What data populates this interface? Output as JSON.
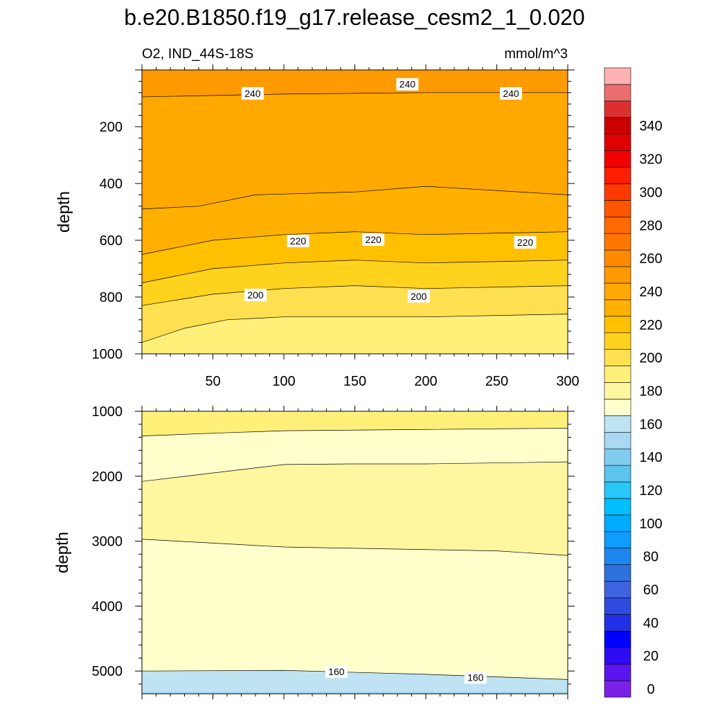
{
  "chart_data": {
    "type": "contour",
    "title": "b.e20.B1850.f19_g17.release_cesm2_1_0.020",
    "left_subtitle": "O2, IND_44S-18S",
    "right_subtitle": "mmol/m^3",
    "panels": [
      {
        "name": "upper",
        "ylabel": "depth",
        "xlim": [
          0,
          300
        ],
        "ylim": [
          0,
          1000
        ],
        "y_reversed": true,
        "x_ticks": [
          50,
          100,
          150,
          200,
          250,
          300
        ],
        "y_ticks": [
          200,
          400,
          600,
          800,
          1000
        ],
        "contour_lines": [
          {
            "level": 240,
            "depth_profile": [
              {
                "x": 0,
                "depth": 95
              },
              {
                "x": 100,
                "depth": 85
              },
              {
                "x": 200,
                "depth": 80
              },
              {
                "x": 300,
                "depth": 80
              }
            ]
          },
          {
            "level": 230,
            "depth_profile": [
              {
                "x": 0,
                "depth": 490
              },
              {
                "x": 40,
                "depth": 480
              },
              {
                "x": 80,
                "depth": 440
              },
              {
                "x": 150,
                "depth": 430
              },
              {
                "x": 200,
                "depth": 410
              },
              {
                "x": 300,
                "depth": 440
              }
            ]
          },
          {
            "level": 220,
            "depth_profile": [
              {
                "x": 0,
                "depth": 650
              },
              {
                "x": 50,
                "depth": 600
              },
              {
                "x": 100,
                "depth": 580
              },
              {
                "x": 150,
                "depth": 570
              },
              {
                "x": 200,
                "depth": 580
              },
              {
                "x": 300,
                "depth": 570
              }
            ]
          },
          {
            "level": 210,
            "depth_profile": [
              {
                "x": 0,
                "depth": 750
              },
              {
                "x": 50,
                "depth": 700
              },
              {
                "x": 100,
                "depth": 680
              },
              {
                "x": 150,
                "depth": 670
              },
              {
                "x": 200,
                "depth": 680
              },
              {
                "x": 300,
                "depth": 670
              }
            ]
          },
          {
            "level": 200,
            "depth_profile": [
              {
                "x": 0,
                "depth": 830
              },
              {
                "x": 50,
                "depth": 790
              },
              {
                "x": 100,
                "depth": 770
              },
              {
                "x": 150,
                "depth": 760
              },
              {
                "x": 200,
                "depth": 770
              },
              {
                "x": 300,
                "depth": 760
              }
            ]
          },
          {
            "level": 190,
            "depth_profile": [
              {
                "x": 0,
                "depth": 960
              },
              {
                "x": 30,
                "depth": 910
              },
              {
                "x": 60,
                "depth": 880
              },
              {
                "x": 100,
                "depth": 870
              },
              {
                "x": 150,
                "depth": 870
              },
              {
                "x": 200,
                "depth": 870
              },
              {
                "x": 300,
                "depth": 860
              }
            ]
          }
        ],
        "labels": [
          {
            "text": "240",
            "x": 78,
            "depth": 85
          },
          {
            "text": "240",
            "x": 187,
            "depth": 53
          },
          {
            "text": "240",
            "x": 260,
            "depth": 85
          },
          {
            "text": "220",
            "x": 110,
            "depth": 605
          },
          {
            "text": "220",
            "x": 163,
            "depth": 600
          },
          {
            "text": "220",
            "x": 270,
            "depth": 610
          },
          {
            "text": "200",
            "x": 80,
            "depth": 795
          },
          {
            "text": "200",
            "x": 195,
            "depth": 800
          }
        ]
      },
      {
        "name": "lower",
        "ylabel": "depth",
        "xlim": [
          0,
          300
        ],
        "ylim": [
          1000,
          5350
        ],
        "y_reversed": true,
        "x_ticks": [
          50,
          100,
          150,
          200,
          250,
          300
        ],
        "y_ticks": [
          1000,
          2000,
          3000,
          4000,
          5000
        ],
        "contour_lines": [
          {
            "level": 180,
            "depth_profile": [
              {
                "x": 0,
                "depth": 1380
              },
              {
                "x": 60,
                "depth": 1330
              },
              {
                "x": 100,
                "depth": 1300
              },
              {
                "x": 200,
                "depth": 1280
              },
              {
                "x": 300,
                "depth": 1260
              }
            ]
          },
          {
            "level": 170,
            "depth_profile": [
              {
                "x": 0,
                "depth": 2080
              },
              {
                "x": 50,
                "depth": 1950
              },
              {
                "x": 100,
                "depth": 1820
              },
              {
                "x": 150,
                "depth": 1810
              },
              {
                "x": 200,
                "depth": 1810
              },
              {
                "x": 300,
                "depth": 1780
              }
            ]
          },
          {
            "level": 170,
            "depth_profile": [
              {
                "x": 0,
                "depth": 2970
              },
              {
                "x": 50,
                "depth": 3030
              },
              {
                "x": 100,
                "depth": 3090
              },
              {
                "x": 150,
                "depth": 3110
              },
              {
                "x": 200,
                "depth": 3130
              },
              {
                "x": 250,
                "depth": 3150
              },
              {
                "x": 300,
                "depth": 3220
              }
            ]
          },
          {
            "level": 160,
            "depth_profile": [
              {
                "x": 0,
                "depth": 5000
              },
              {
                "x": 100,
                "depth": 4990
              },
              {
                "x": 200,
                "depth": 5050
              },
              {
                "x": 300,
                "depth": 5130
              }
            ]
          }
        ],
        "labels": [
          {
            "text": "160",
            "x": 137,
            "depth": 5020
          },
          {
            "text": "160",
            "x": 235,
            "depth": 5110
          }
        ]
      }
    ],
    "colorbar": {
      "tick_labels": [
        0,
        20,
        40,
        60,
        80,
        100,
        120,
        140,
        160,
        180,
        200,
        220,
        240,
        260,
        280,
        300,
        320,
        340
      ],
      "levels_min": -5,
      "levels_step": 10,
      "colors": [
        "#7A21E8",
        "#5A15F0",
        "#2D0BF5",
        "#0000FF",
        "#2231E8",
        "#2F4BE0",
        "#3F63DC",
        "#2D71DC",
        "#1E86F0",
        "#0F9BFF",
        "#00ACFF",
        "#00BEFF",
        "#29C6F8",
        "#5CC5EE",
        "#80CDF0",
        "#A8D8F2",
        "#BFE3F2",
        "#FFFFCC",
        "#FFF7A0",
        "#FFF07A",
        "#FFE050",
        "#FFD21E",
        "#FFC000",
        "#FFB000",
        "#FFA800",
        "#FF9A00",
        "#FF8A00",
        "#FF7700",
        "#FF6A00",
        "#FF5500",
        "#FF3A00",
        "#FF1E00",
        "#F20000",
        "#E10000",
        "#CC0000",
        "#DC3030",
        "#EB6E6E",
        "#FFB2B2"
      ]
    }
  }
}
